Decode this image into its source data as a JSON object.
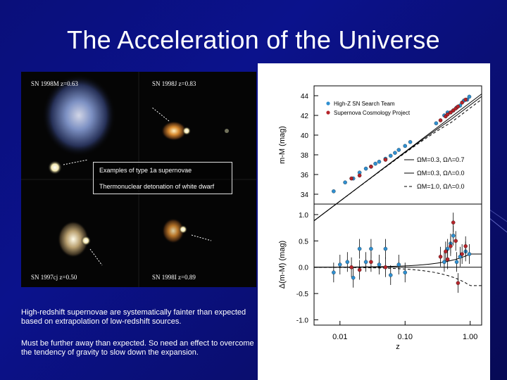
{
  "slide": {
    "title": "The Acceleration of the Universe"
  },
  "photo_panel": {
    "labels": {
      "top_left": "SN 1998M  z=0.63",
      "top_right": "SN 1998J  z=0.83",
      "bottom_left": "SN 1997cj  z=0.50",
      "bottom_right": "SN 1998I  z=0.89"
    },
    "examples_box": {
      "line1": "Examples of type 1a supernovae",
      "line2": "Thermonuclear detonation of white dwarf"
    }
  },
  "captions": {
    "paragraph1": "High-redshift supernovae are systematically fainter than expected based on extrapolation of low-redshift sources.",
    "paragraph2": "Must be further away than expected. So need an effect to overcome the tendency of gravity to slow down the expansion."
  },
  "chart_data": [
    {
      "type": "scatter",
      "panel": "top",
      "ylabel": "m-M (mag)",
      "y_ticks": [
        "44",
        "42",
        "40",
        "38",
        "36",
        "34"
      ],
      "ylim": [
        33,
        45
      ],
      "xlim": [
        0.004,
        1.5
      ],
      "x_scale": "log",
      "legend": [
        {
          "name": "High-Z SN Search Team",
          "color": "#2f8fd0"
        },
        {
          "name": "Supernova Cosmology Project",
          "color": "#b5242a"
        }
      ],
      "models": [
        {
          "label": "ΩM=0.3, ΩΛ=0.7",
          "style": "solid"
        },
        {
          "label": "ΩM=0.3, ΩΛ=0.0",
          "style": "solid"
        },
        {
          "label": "ΩM=1.0, ΩΛ=0.0",
          "style": "dashed"
        }
      ],
      "series": [
        {
          "name": "High-Z SN Search Team",
          "x": [
            0.008,
            0.012,
            0.016,
            0.02,
            0.025,
            0.03,
            0.035,
            0.04,
            0.05,
            0.06,
            0.07,
            0.08,
            0.1,
            0.12,
            0.3,
            0.4,
            0.45,
            0.5,
            0.55,
            0.62,
            0.7,
            0.8,
            0.9,
            0.97
          ],
          "y": [
            34.3,
            35.2,
            35.6,
            36.2,
            36.6,
            36.8,
            37.1,
            37.3,
            37.6,
            37.9,
            38.2,
            38.5,
            38.9,
            39.3,
            41.2,
            42.0,
            42.3,
            42.3,
            42.5,
            42.8,
            43.0,
            43.5,
            43.6,
            43.9
          ]
        },
        {
          "name": "Supernova Cosmology Project",
          "x": [
            0.015,
            0.02,
            0.03,
            0.05,
            0.35,
            0.42,
            0.45,
            0.5,
            0.55,
            0.6,
            0.65,
            0.75,
            0.85
          ],
          "y": [
            35.6,
            35.9,
            36.8,
            37.5,
            41.5,
            41.9,
            42.1,
            42.3,
            42.5,
            42.7,
            42.9,
            43.3,
            43.6
          ]
        }
      ]
    },
    {
      "type": "scatter",
      "panel": "bottom",
      "ylabel": "Δ(m-M) (mag)",
      "xlabel": "z",
      "y_ticks": [
        "1.0",
        "0.5",
        "0.0",
        "-0.5",
        "-1.0"
      ],
      "x_ticks": [
        "0.01",
        "0.10",
        "1.00"
      ],
      "ylim": [
        -1.1,
        1.2
      ],
      "xlim": [
        0.004,
        1.5
      ],
      "x_scale": "log",
      "models": [
        {
          "label": "ΩM=0.3, ΩΛ=0.7",
          "style": "solid"
        },
        {
          "label": "ΩM=0.3, ΩΛ=0.0",
          "style": "solid"
        },
        {
          "label": "ΩM=1.0, ΩΛ=0.0",
          "style": "dashed"
        }
      ],
      "series": [
        {
          "name": "High-Z SN Search Team",
          "x": [
            0.008,
            0.01,
            0.013,
            0.016,
            0.02,
            0.025,
            0.03,
            0.04,
            0.05,
            0.06,
            0.08,
            0.1,
            0.4,
            0.45,
            0.5,
            0.55,
            0.62,
            0.7,
            0.85,
            0.97
          ],
          "y": [
            -0.1,
            0.05,
            0.1,
            -0.2,
            0.35,
            0.1,
            0.35,
            0.05,
            0.35,
            -0.15,
            0.05,
            -0.1,
            0.1,
            0.35,
            0.45,
            0.6,
            0.1,
            0.2,
            0.3,
            0.25
          ]
        },
        {
          "name": "Supernova Cosmology Project",
          "x": [
            0.015,
            0.02,
            0.03,
            0.05,
            0.35,
            0.42,
            0.45,
            0.5,
            0.55,
            0.6,
            0.65,
            0.75,
            0.85
          ],
          "y": [
            0.0,
            -0.05,
            0.1,
            0.0,
            0.2,
            0.3,
            0.15,
            0.4,
            0.85,
            0.5,
            -0.3,
            0.25,
            0.4
          ]
        }
      ]
    }
  ]
}
